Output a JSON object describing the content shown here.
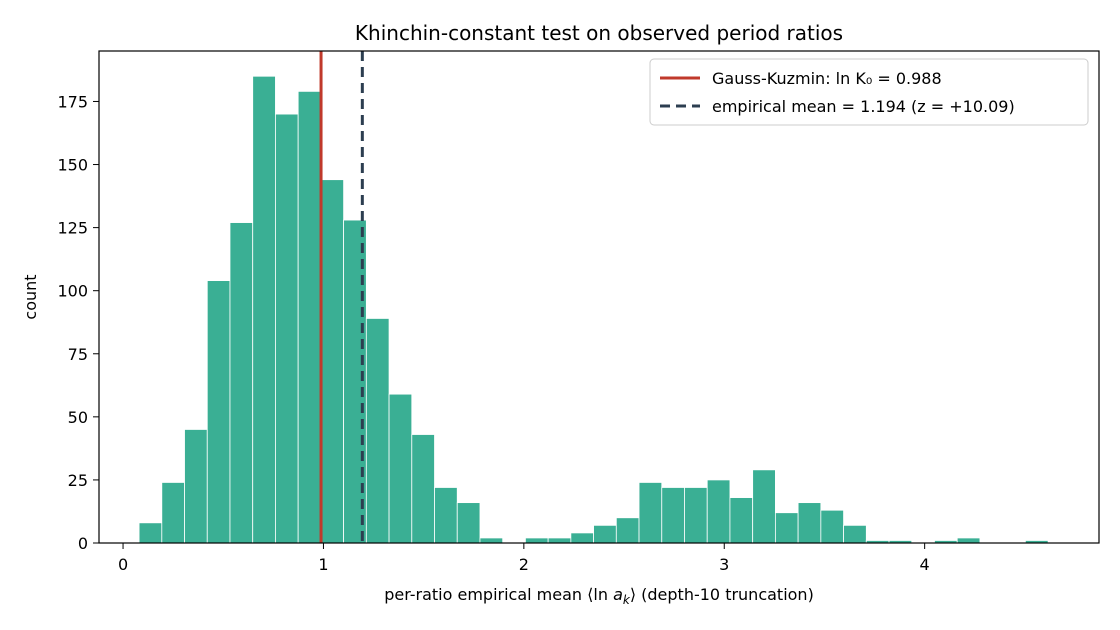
{
  "chart_data": {
    "type": "bar",
    "title": "Khinchin-constant test on observed period ratios",
    "xlabel": "per-ratio empirical mean ⟨ln a_k⟩  (depth-10 truncation)",
    "xlabel_prefix": "per-ratio empirical mean ⟨ln ",
    "xlabel_var": "a",
    "xlabel_sub": "k",
    "xlabel_suffix": "⟩  (depth-10 truncation)",
    "ylabel": "count",
    "xlim": [
      -0.12,
      4.87
    ],
    "ylim": [
      0,
      195
    ],
    "xticks": [
      0,
      1,
      2,
      3,
      4
    ],
    "yticks": [
      0,
      25,
      50,
      75,
      100,
      125,
      150,
      175
    ],
    "bin_width": 0.1134,
    "bin_start": 0.08,
    "counts": [
      8,
      24,
      45,
      104,
      127,
      185,
      170,
      179,
      144,
      128,
      89,
      59,
      43,
      22,
      16,
      2,
      0,
      2,
      2,
      4,
      7,
      10,
      24,
      22,
      22,
      25,
      18,
      29,
      12,
      16,
      13,
      7,
      1,
      1,
      0,
      1,
      2,
      0,
      0,
      1
    ],
    "bar_color": "#3aaf94",
    "reference_lines": [
      {
        "name": "Gauss-Kuzmin: ln K₀ = 0.988",
        "x": 0.988,
        "color": "#c0392b",
        "style": "solid"
      },
      {
        "name": "empirical mean = 1.194 (z = +10.09)",
        "x": 1.194,
        "color": "#2c3e50",
        "style": "dashed"
      }
    ],
    "legend_position": "top-right",
    "grid": false
  }
}
